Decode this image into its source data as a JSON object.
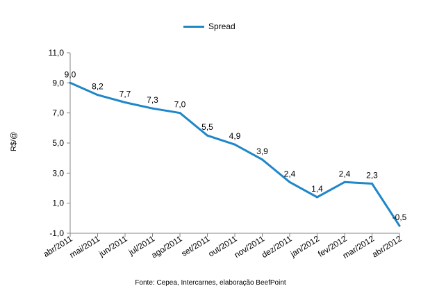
{
  "chart_data": {
    "type": "line",
    "title": "",
    "xlabel": "",
    "ylabel": "R$/@",
    "source_note": "Fonte: Cepea, Intercarnes, elaboração BeefPoint",
    "legend": {
      "position": "top-center",
      "entries": [
        "Spread"
      ]
    },
    "grid": false,
    "ylim": [
      -1.0,
      11.0
    ],
    "yticks": [
      "-1,0",
      "1,0",
      "3,0",
      "5,0",
      "7,0",
      "9,0",
      "11,0"
    ],
    "categories": [
      "abr/2011",
      "mai/2011",
      "jun/2011",
      "jul/2011",
      "ago/2011",
      "set/2011",
      "out/2011",
      "nov/2011",
      "dez/2011",
      "jan/2012",
      "fev/2012",
      "mar/2012",
      "abr/2012"
    ],
    "series": [
      {
        "name": "Spread",
        "color": "#1f86c8",
        "values": [
          9.0,
          8.2,
          7.7,
          7.3,
          7.0,
          5.5,
          4.9,
          3.9,
          2.4,
          1.4,
          2.4,
          2.3,
          -0.5
        ],
        "labels": [
          "9,0",
          "8,2",
          "7,7",
          "7,3",
          "7,0",
          "5,5",
          "4,9",
          "3,9",
          "2,4",
          "1,4",
          "2,4",
          "2,3",
          "-0,5"
        ]
      }
    ]
  }
}
